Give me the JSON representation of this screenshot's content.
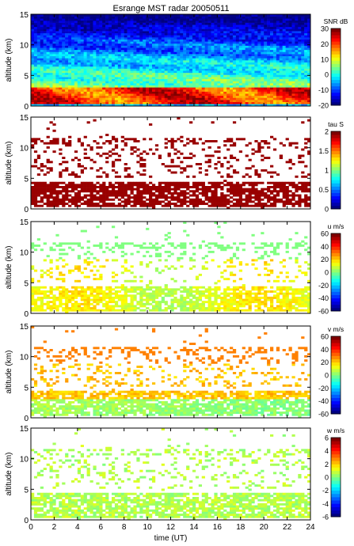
{
  "title": "Esrange MST radar 20050511",
  "chart_data": [
    {
      "type": "heatmap",
      "ylabel": "altitude (km)",
      "xlabel": "",
      "xlim": [
        0,
        24
      ],
      "ylim": [
        0,
        15
      ],
      "yticks": [
        "0",
        "5",
        "10",
        "15"
      ],
      "colorbar": {
        "label": "SNR dB",
        "range": [
          -20,
          30
        ],
        "ticks": [
          "30",
          "20",
          "10",
          "0",
          "-10",
          "-20"
        ],
        "scheme": "jet"
      },
      "field": "snr"
    },
    {
      "type": "heatmap",
      "ylabel": "altitude (km)",
      "xlabel": "",
      "xlim": [
        0,
        24
      ],
      "ylim": [
        0,
        15
      ],
      "yticks": [
        "0",
        "5",
        "10",
        "15"
      ],
      "colorbar": {
        "label": "tau S",
        "range": [
          0,
          2
        ],
        "ticks": [
          "2",
          "1.5",
          "1",
          "0.5",
          "0"
        ],
        "scheme": "jet"
      },
      "field": "tau"
    },
    {
      "type": "heatmap",
      "ylabel": "altitude (km)",
      "xlabel": "",
      "xlim": [
        0,
        24
      ],
      "ylim": [
        0,
        15
      ],
      "yticks": [
        "0",
        "5",
        "10",
        "15"
      ],
      "colorbar": {
        "label": "u m/s",
        "range": [
          -60,
          60
        ],
        "ticks": [
          "60",
          "40",
          "20",
          "0",
          "-20",
          "-40",
          "-60"
        ],
        "scheme": "jet"
      },
      "field": "u"
    },
    {
      "type": "heatmap",
      "ylabel": "altitude (km)",
      "xlabel": "",
      "xlim": [
        0,
        24
      ],
      "ylim": [
        0,
        15
      ],
      "yticks": [
        "0",
        "5",
        "10",
        "15"
      ],
      "colorbar": {
        "label": "v m/s",
        "range": [
          -60,
          60
        ],
        "ticks": [
          "60",
          "40",
          "20",
          "0",
          "-20",
          "-40",
          "-60"
        ],
        "scheme": "jet"
      },
      "field": "v"
    },
    {
      "type": "heatmap",
      "ylabel": "altitude (km)",
      "xlabel": "time (UT)",
      "xlim": [
        0,
        24
      ],
      "ylim": [
        0,
        15
      ],
      "yticks": [
        "0",
        "5",
        "10",
        "15"
      ],
      "xticks": [
        "0",
        "2",
        "4",
        "6",
        "8",
        "10",
        "12",
        "14",
        "16",
        "18",
        "20",
        "22",
        "24"
      ],
      "colorbar": {
        "label": "w m/s",
        "range": [
          -6,
          6
        ],
        "ticks": [
          "6",
          "4",
          "2",
          "0",
          "-2",
          "-4",
          "-6"
        ],
        "scheme": "jet"
      },
      "field": "w"
    }
  ]
}
